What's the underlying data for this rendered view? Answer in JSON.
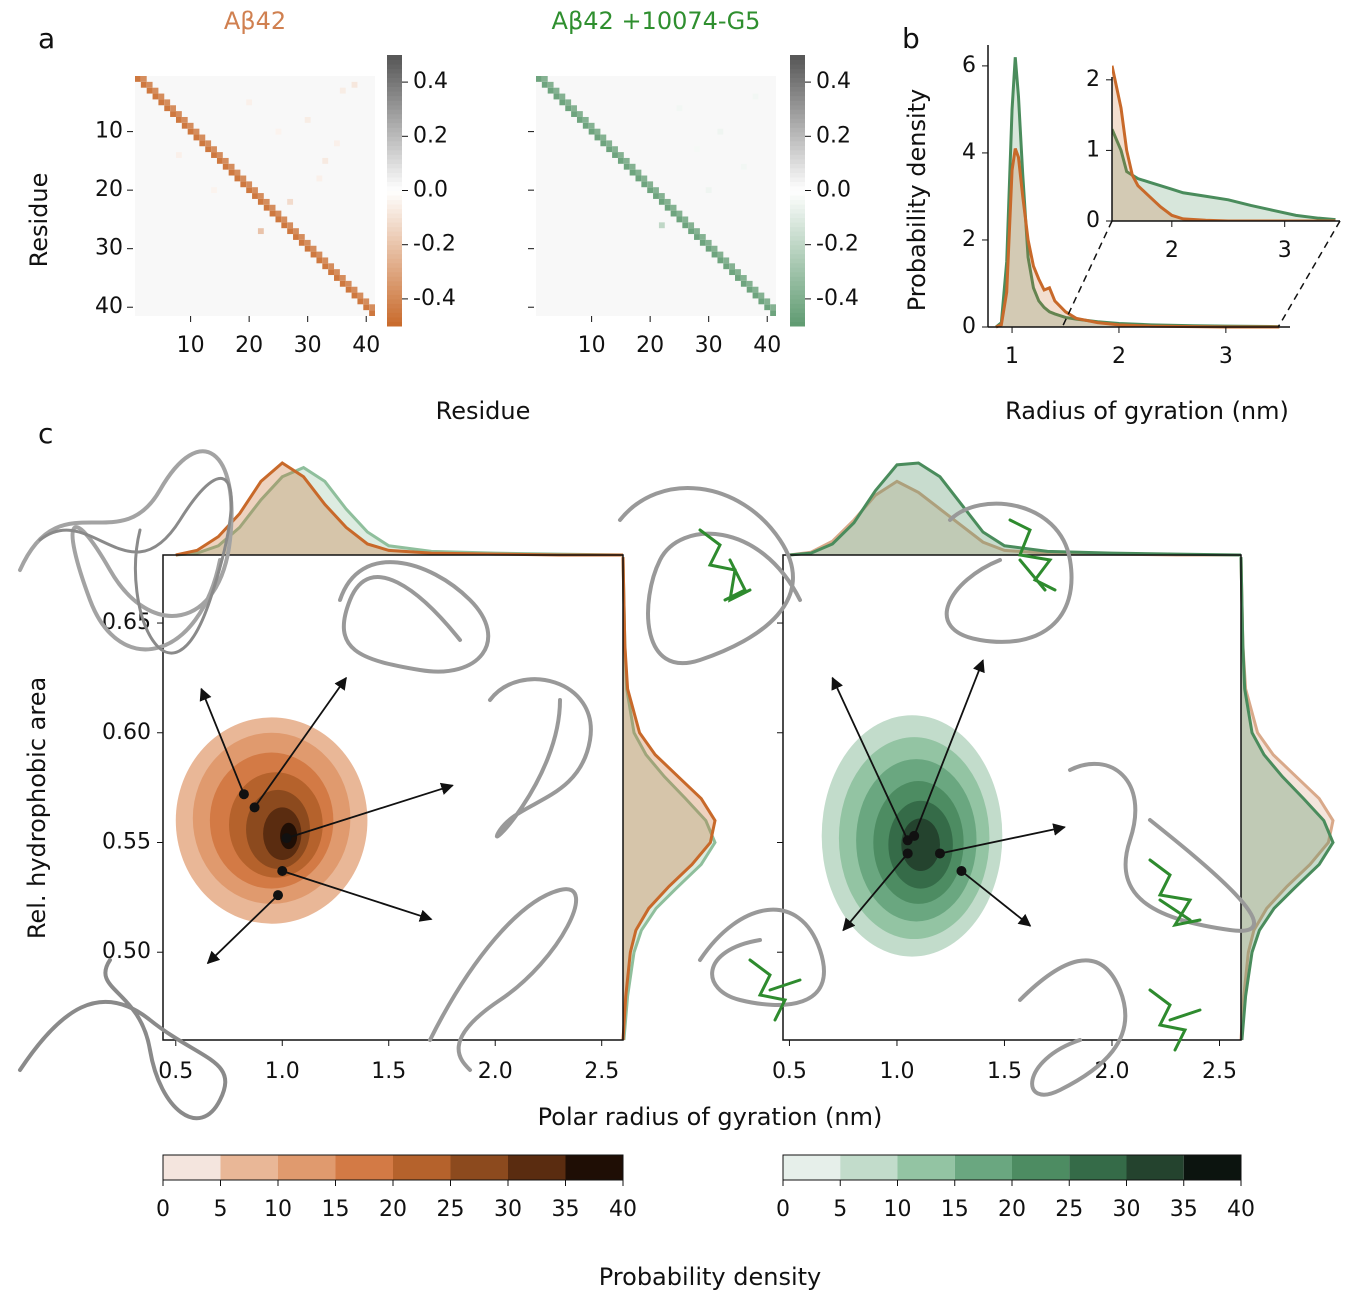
{
  "panel_labels": [
    "a",
    "b",
    "c"
  ],
  "chart_data": [
    {
      "type": "heatmap",
      "title": "Aβ42",
      "title_color": "#d08050",
      "xlabel": "Residue",
      "ylabel": "Residue",
      "xlim": [
        0.5,
        41.5
      ],
      "ylim": [
        0.5,
        41.5
      ],
      "xticks": [
        10,
        20,
        30,
        40
      ],
      "yticks": [
        10,
        20,
        30,
        40
      ],
      "show_ytick_labels": true,
      "color": "#c8692a",
      "clim": [
        -0.5,
        0.5
      ],
      "cbar_ticks": [
        0.4,
        0.2,
        {
          "value": 0,
          "label": "0.0"
        },
        -0.2,
        -0.4
      ],
      "diagonals": [
        {
          "offset": 0,
          "values": [
            -0.45,
            -0.45,
            -0.45,
            -0.45,
            -0.45,
            -0.45,
            -0.45,
            -0.45,
            -0.45,
            -0.45,
            -0.45,
            -0.45,
            -0.45,
            -0.45,
            -0.45,
            -0.45,
            -0.45,
            -0.45,
            -0.45,
            -0.45,
            -0.45,
            -0.45,
            -0.45,
            -0.45,
            -0.45,
            -0.45,
            -0.45,
            -0.45,
            -0.45,
            -0.45,
            -0.45,
            -0.45,
            -0.45,
            -0.45,
            -0.45,
            -0.45,
            -0.45,
            -0.45,
            -0.45,
            -0.45,
            -0.45
          ]
        },
        {
          "offset": 1,
          "values": [
            -0.38,
            -0.38,
            -0.38,
            -0.38,
            -0.38,
            -0.38,
            -0.38,
            -0.38,
            -0.38,
            -0.38,
            -0.38,
            -0.38,
            -0.38,
            -0.38,
            -0.38,
            -0.38,
            -0.38,
            -0.38,
            -0.38,
            -0.38,
            -0.38,
            -0.38,
            -0.38,
            -0.38,
            -0.38,
            -0.38,
            -0.38,
            -0.38,
            -0.38,
            -0.38,
            -0.38,
            -0.38,
            -0.38,
            -0.38,
            -0.38,
            -0.38,
            -0.38,
            -0.38,
            -0.38,
            -0.38
          ]
        }
      ],
      "cells": [
        [
          5,
          20,
          -0.05
        ],
        [
          8,
          30,
          -0.06
        ],
        [
          12,
          35,
          -0.05
        ],
        [
          15,
          33,
          -0.07
        ],
        [
          10,
          25,
          -0.04
        ],
        [
          22,
          27,
          -0.12
        ],
        [
          3,
          36,
          -0.06
        ],
        [
          18,
          32,
          -0.05
        ],
        [
          27,
          22,
          -0.2
        ],
        [
          2,
          38,
          -0.08
        ],
        [
          14,
          8,
          -0.05
        ],
        [
          20,
          14,
          -0.04
        ]
      ]
    },
    {
      "type": "heatmap",
      "title": "Aβ42 +10074-G5",
      "title_color": "#2f8f2f",
      "xlim": [
        0.5,
        41.5
      ],
      "ylim": [
        0.5,
        41.5
      ],
      "xticks": [
        10,
        20,
        30,
        40
      ],
      "yticks": [
        10,
        20,
        30,
        40
      ],
      "show_ytick_labels": false,
      "color": "#5e9a70",
      "clim": [
        -0.5,
        0.5
      ],
      "cbar_ticks": [
        0.4,
        0.2,
        {
          "value": 0,
          "label": "0.0"
        },
        -0.2,
        -0.4
      ],
      "diagonals": [
        {
          "offset": 0,
          "values": [
            -0.45,
            -0.45,
            -0.45,
            -0.45,
            -0.45,
            -0.45,
            -0.45,
            -0.45,
            -0.45,
            -0.45,
            -0.45,
            -0.45,
            -0.45,
            -0.45,
            -0.45,
            -0.45,
            -0.45,
            -0.45,
            -0.45,
            -0.45,
            -0.45,
            -0.45,
            -0.45,
            -0.45,
            -0.45,
            -0.45,
            -0.45,
            -0.45,
            -0.45,
            -0.45,
            -0.45,
            -0.45,
            -0.45,
            -0.45,
            -0.45,
            -0.45,
            -0.45,
            -0.45,
            -0.45,
            -0.45,
            -0.45
          ]
        },
        {
          "offset": 1,
          "values": [
            -0.38,
            -0.38,
            -0.38,
            -0.38,
            -0.38,
            -0.38,
            -0.38,
            -0.38,
            -0.38,
            -0.38,
            -0.38,
            -0.38,
            -0.38,
            -0.38,
            -0.38,
            -0.38,
            -0.38,
            -0.38,
            -0.38,
            -0.38,
            -0.38,
            -0.38,
            -0.38,
            -0.38,
            -0.38,
            -0.38,
            -0.38,
            -0.38,
            -0.38,
            -0.38,
            -0.38,
            -0.38,
            -0.38,
            -0.38,
            -0.38,
            -0.38,
            -0.38,
            -0.38,
            -0.38,
            -0.38
          ]
        }
      ],
      "cells": [
        [
          26,
          22,
          -0.2
        ],
        [
          6,
          25,
          -0.04
        ],
        [
          10,
          32,
          -0.05
        ],
        [
          16,
          36,
          -0.04
        ],
        [
          20,
          30,
          -0.05
        ],
        [
          4,
          38,
          -0.04
        ],
        [
          13,
          28,
          -0.03
        ]
      ]
    },
    {
      "type": "line",
      "xlabel": "Radius of gyration (nm)",
      "ylabel": "Probability density",
      "xlim": [
        0.775,
        3.6
      ],
      "ylim": [
        0,
        6.48
      ],
      "xticks": [
        1,
        2,
        3
      ],
      "yticks": [
        0,
        2,
        4,
        6
      ],
      "x": [
        0.85,
        0.9,
        0.95,
        1.0,
        1.03,
        1.06,
        1.1,
        1.15,
        1.2,
        1.25,
        1.3,
        1.35,
        1.4,
        1.5,
        1.6,
        1.8,
        2.0,
        2.3,
        2.7,
        3.0,
        3.5
      ],
      "series": [
        {
          "color": "#4a8c5c",
          "values": [
            0,
            0.1,
            1.5,
            5.0,
            6.2,
            5.3,
            3.5,
            1.6,
            0.9,
            0.6,
            0.45,
            0.35,
            0.3,
            0.22,
            0.18,
            0.12,
            0.08,
            0.05,
            0.03,
            0.02,
            0.01
          ]
        },
        {
          "color": "#c8692a",
          "values": [
            0,
            0.05,
            0.8,
            3.6,
            4.1,
            3.9,
            3.0,
            2.0,
            1.4,
            1.1,
            0.85,
            0.9,
            0.6,
            0.35,
            0.2,
            0.1,
            0.05,
            0.02,
            0.01,
            0,
            0
          ]
        }
      ]
    },
    {
      "type": "inset",
      "xlim": [
        1.47,
        3.49
      ],
      "ylim": [
        0,
        2.04
      ],
      "xticks": [
        2,
        3
      ],
      "yticks": [
        0,
        1,
        2
      ],
      "x": [
        1.47,
        1.55,
        1.6,
        1.65,
        1.7,
        1.8,
        1.9,
        2.0,
        2.1,
        2.3,
        2.5,
        2.7,
        2.9,
        3.1,
        3.3,
        3.45
      ],
      "series": [
        {
          "color": "#4a8c5c",
          "values": [
            1.3,
            1.0,
            0.7,
            0.65,
            0.6,
            0.55,
            0.5,
            0.45,
            0.4,
            0.35,
            0.3,
            0.22,
            0.15,
            0.08,
            0.04,
            0.02
          ]
        },
        {
          "color": "#c8692a",
          "values": [
            2.2,
            1.6,
            1.0,
            0.65,
            0.5,
            0.35,
            0.2,
            0.08,
            0.03,
            0.01,
            0,
            0,
            0,
            0,
            0,
            0
          ]
        }
      ]
    },
    {
      "type": "contour",
      "xlabel": "Polar radius of gyration (nm)",
      "ylabel": "Rel. hydrophobic area",
      "colorbar_label": "Probability density",
      "xlim": [
        0.44,
        2.6
      ],
      "ylim": [
        0.46,
        0.681
      ],
      "show_ytick_labels": true,
      "xticks": [
        0.5,
        {
          "value": 1,
          "label": "1.0"
        },
        1.5,
        {
          "value": 2,
          "label": "2.0"
        },
        2.5
      ],
      "yticks": [
        {
          "value": 0.5,
          "label": "0.50"
        },
        0.55,
        {
          "value": 0.6,
          "label": "0.60"
        },
        0.65
      ],
      "contours": [
        {
          "level": 5,
          "center": [
            0.95,
            0.56
          ],
          "radii": [
            0.45,
            0.047
          ]
        },
        {
          "level": 10,
          "center": [
            0.95,
            0.561
          ],
          "radii": [
            0.37,
            0.039
          ]
        },
        {
          "level": 15,
          "center": [
            0.95,
            0.56
          ],
          "radii": [
            0.29,
            0.031
          ]
        },
        {
          "level": 20,
          "center": [
            0.97,
            0.558
          ],
          "radii": [
            0.22,
            0.024
          ]
        },
        {
          "level": 25,
          "center": [
            0.98,
            0.556
          ],
          "radii": [
            0.15,
            0.018
          ]
        },
        {
          "level": 30,
          "center": [
            1.0,
            0.554
          ],
          "radii": [
            0.09,
            0.012
          ]
        },
        {
          "level": 35,
          "center": [
            1.03,
            0.553
          ],
          "radii": [
            0.04,
            0.006
          ]
        }
      ],
      "points": {
        "x": [
          0.82,
          0.87,
          1.02,
          1.0,
          0.98
        ],
        "y": [
          0.572,
          0.566,
          0.552,
          0.537,
          0.526
        ]
      },
      "arrows": {
        "x": [
          0.62,
          1.3,
          1.8,
          1.7,
          0.65
        ],
        "y": [
          0.62,
          0.625,
          0.576,
          0.515,
          0.495
        ]
      },
      "marginal_x": {
        "x": [
          0.5,
          0.6,
          0.7,
          0.8,
          0.9,
          1.0,
          1.1,
          1.2,
          1.3,
          1.4,
          1.5,
          1.7,
          2.0,
          2.3,
          2.6
        ],
        "series": [
          {
            "color": "#8fbf9c",
            "values": [
              0,
              0.02,
              0.1,
              0.3,
              0.6,
              0.85,
              0.95,
              0.8,
              0.5,
              0.25,
              0.1,
              0.04,
              0.02,
              0.01,
              0
            ]
          },
          {
            "color": "#c8692a",
            "values": [
              0,
              0.05,
              0.2,
              0.45,
              0.8,
              1.0,
              0.85,
              0.55,
              0.3,
              0.12,
              0.05,
              0.02,
              0.01,
              0,
              0
            ]
          }
        ]
      },
      "marginal_y": {
        "y": [
          0.46,
          0.48,
          0.5,
          0.51,
          0.52,
          0.53,
          0.54,
          0.55,
          0.56,
          0.57,
          0.58,
          0.59,
          0.6,
          0.62,
          0.64,
          0.66,
          0.68
        ],
        "series": [
          {
            "color": "#8fbf9c",
            "values": [
              0.01,
              0.05,
              0.12,
              0.2,
              0.36,
              0.6,
              0.85,
              1.0,
              0.9,
              0.68,
              0.45,
              0.25,
              0.12,
              0.04,
              0.02,
              0.01,
              0
            ]
          },
          {
            "color": "#c8692a",
            "values": [
              0,
              0.03,
              0.08,
              0.14,
              0.28,
              0.5,
              0.75,
              0.95,
              1.0,
              0.85,
              0.6,
              0.35,
              0.18,
              0.05,
              0.02,
              0.01,
              0
            ]
          }
        ]
      },
      "colorbar": {
        "lim": [
          0,
          40
        ],
        "ticks": [
          0,
          5,
          10,
          15,
          20,
          25,
          30,
          35,
          40
        ],
        "colors": [
          "#f4e5de",
          "#e9b797",
          "#e09a6e",
          "#d37a45",
          "#b5622c",
          "#8c4a1e",
          "#5a2c10",
          "#1f0e05"
        ]
      }
    },
    {
      "type": "contour",
      "xlim": [
        0.47,
        2.6
      ],
      "ylim": [
        0.46,
        0.681
      ],
      "show_ytick_labels": false,
      "xticks": [
        0.5,
        {
          "value": 1,
          "label": "1.0"
        },
        1.5,
        {
          "value": 2,
          "label": "2.0"
        },
        2.5
      ],
      "yticks": [
        {
          "value": 0.5,
          "label": "0.50"
        },
        0.55,
        {
          "value": 0.6,
          "label": "0.60"
        },
        0.65
      ],
      "contours": [
        {
          "level": 5,
          "center": [
            1.07,
            0.553
          ],
          "radii": [
            0.42,
            0.055
          ]
        },
        {
          "level": 10,
          "center": [
            1.08,
            0.552
          ],
          "radii": [
            0.35,
            0.046
          ]
        },
        {
          "level": 15,
          "center": [
            1.09,
            0.551
          ],
          "radii": [
            0.28,
            0.037
          ]
        },
        {
          "level": 20,
          "center": [
            1.1,
            0.55
          ],
          "radii": [
            0.21,
            0.028
          ]
        },
        {
          "level": 25,
          "center": [
            1.11,
            0.549
          ],
          "radii": [
            0.15,
            0.02
          ]
        },
        {
          "level": 30,
          "center": [
            1.11,
            0.549
          ],
          "radii": [
            0.09,
            0.012
          ]
        }
      ],
      "points": {
        "x": [
          1.05,
          1.08,
          1.05,
          1.2,
          1.3
        ],
        "y": [
          0.551,
          0.553,
          0.545,
          0.545,
          0.537
        ]
      },
      "arrows": {
        "x": [
          0.7,
          1.4,
          0.75,
          1.78,
          1.62
        ],
        "y": [
          0.625,
          0.633,
          0.51,
          0.557,
          0.512
        ]
      },
      "marginal_x": {
        "x": [
          0.5,
          0.6,
          0.7,
          0.8,
          0.9,
          1.0,
          1.1,
          1.2,
          1.3,
          1.4,
          1.5,
          1.7,
          2.0,
          2.3,
          2.6
        ],
        "series": [
          {
            "color": "#d9a98a",
            "values": [
              0,
              0.03,
              0.15,
              0.38,
              0.65,
              0.8,
              0.68,
              0.5,
              0.32,
              0.14,
              0.05,
              0.02,
              0.01,
              0,
              0
            ]
          },
          {
            "color": "#4a8c5c",
            "values": [
              0,
              0.02,
              0.12,
              0.35,
              0.7,
              0.98,
              1.0,
              0.85,
              0.55,
              0.25,
              0.1,
              0.04,
              0.02,
              0.01,
              0
            ]
          }
        ]
      },
      "marginal_y": {
        "y": [
          0.46,
          0.48,
          0.5,
          0.51,
          0.52,
          0.53,
          0.54,
          0.55,
          0.56,
          0.57,
          0.58,
          0.59,
          0.6,
          0.62,
          0.64,
          0.66,
          0.68
        ],
        "series": [
          {
            "color": "#d9a98a",
            "values": [
              0,
              0.03,
              0.08,
              0.14,
              0.28,
              0.5,
              0.75,
              0.95,
              1.0,
              0.85,
              0.6,
              0.35,
              0.18,
              0.05,
              0.02,
              0.01,
              0
            ]
          },
          {
            "color": "#4a8c5c",
            "values": [
              0.01,
              0.05,
              0.12,
              0.2,
              0.36,
              0.6,
              0.85,
              1.0,
              0.9,
              0.68,
              0.45,
              0.25,
              0.12,
              0.04,
              0.02,
              0.01,
              0
            ]
          }
        ]
      },
      "colorbar": {
        "lim": [
          0,
          40
        ],
        "ticks": [
          0,
          5,
          10,
          15,
          20,
          25,
          30,
          35,
          40
        ],
        "colors": [
          "#e6efea",
          "#c2dccb",
          "#93c4a3",
          "#6aa780",
          "#4d8c62",
          "#356b48",
          "#24432e",
          "#0c140f"
        ]
      }
    }
  ]
}
